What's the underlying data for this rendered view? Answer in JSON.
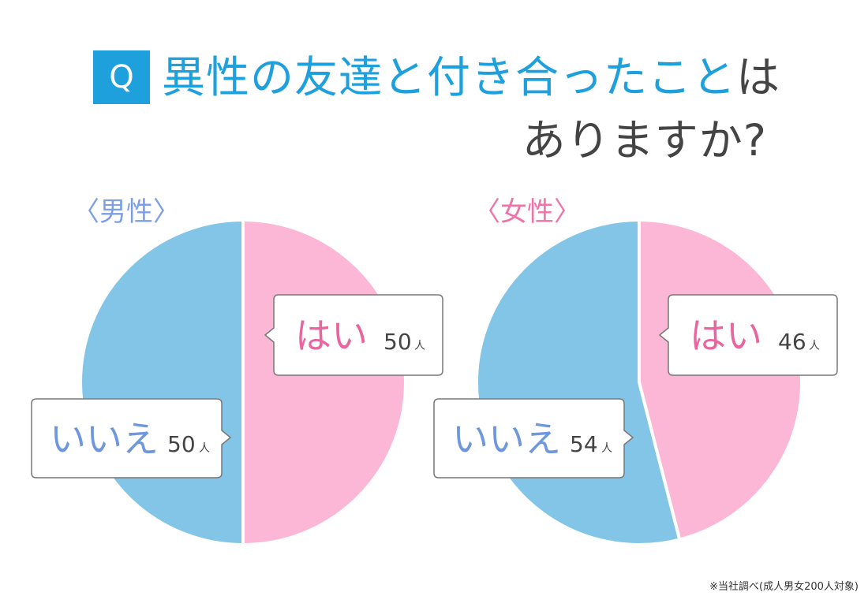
{
  "title": {
    "q_label": "Q",
    "line1_highlight": "異性の友達と付き合ったこと",
    "line1_rest": "は",
    "line2": "ありますか?"
  },
  "colors": {
    "yes": "#fbb7d5",
    "no": "#83c5e6",
    "yes_text": "#e8659e",
    "no_text": "#6e97dd",
    "male_label": "#7e9fe6",
    "female_label": "#ef73a8",
    "accent": "#1ea0dc"
  },
  "chart_data": [
    {
      "type": "pie",
      "title": "〈男性〉",
      "unit": "人",
      "slices": [
        {
          "label": "はい",
          "value": 50
        },
        {
          "label": "いいえ",
          "value": 50
        }
      ]
    },
    {
      "type": "pie",
      "title": "〈女性〉",
      "unit": "人",
      "slices": [
        {
          "label": "はい",
          "value": 46
        },
        {
          "label": "いいえ",
          "value": 54
        }
      ]
    }
  ],
  "footnote": "※当社調べ(成人男女200人対象)"
}
